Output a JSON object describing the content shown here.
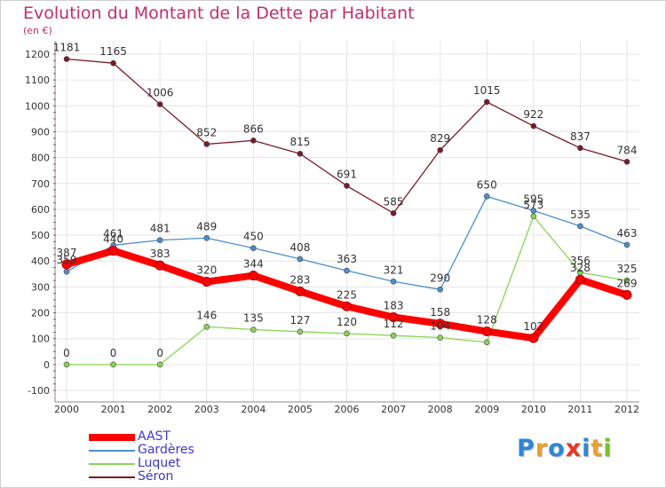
{
  "title": "Evolution du Montant de la Dette par Habitant",
  "unit": "(en €)",
  "logo": {
    "text": "Proxiti",
    "letter_colors": [
      "#2e86d6",
      "#e8a12a",
      "#2e86d6",
      "#e23a2a",
      "#2e86d6",
      "#e8a12a",
      "#7bbf2e"
    ]
  },
  "chart_data": {
    "type": "line",
    "x": [
      "2000",
      "2001",
      "2002",
      "2003",
      "2004",
      "2005",
      "2006",
      "2007",
      "2008",
      "2009",
      "2010",
      "2011",
      "2012"
    ],
    "ylim": [
      -100,
      1200
    ],
    "yticks": [
      -100,
      0,
      100,
      200,
      300,
      400,
      500,
      600,
      700,
      800,
      900,
      1000,
      1100,
      1200
    ],
    "grid": true,
    "legend_position": "bottom-left",
    "series": [
      {
        "name": "Séron",
        "color": "#7a1a24",
        "values": [
          1181,
          1165,
          1006,
          852,
          866,
          815,
          691,
          585,
          829,
          1015,
          922,
          837,
          784
        ]
      },
      {
        "name": "Gardères",
        "color": "#4a8fcf",
        "values": [
          359,
          461,
          481,
          489,
          450,
          408,
          363,
          321,
          290,
          650,
          595,
          535,
          463
        ]
      },
      {
        "name": "Luquet",
        "color": "#88d455",
        "values": [
          0,
          0,
          0,
          146,
          135,
          127,
          120,
          112,
          104,
          86,
          573,
          356,
          325
        ]
      },
      {
        "name": "AAST",
        "color": "#ff0000",
        "values": [
          387,
          440,
          383,
          320,
          344,
          283,
          225,
          183,
          158,
          128,
          102,
          328,
          269
        ]
      }
    ],
    "legend_order": [
      "AAST",
      "Gardères",
      "Luquet",
      "Séron"
    ],
    "data_labels": {
      "Séron": [
        "1181",
        "1165",
        "1006",
        "852",
        "866",
        "815",
        "691",
        "585",
        "829",
        "1015",
        "922",
        "837",
        "784"
      ],
      "Gardères": [
        "359",
        "461",
        "481",
        "489",
        "450",
        "408",
        "363",
        "321",
        "290",
        "650",
        "595",
        "535",
        "463"
      ],
      "Luquet": [
        "0",
        "0",
        "0",
        "146",
        "135",
        "127",
        "120",
        "112",
        "104",
        "",
        "573",
        "356",
        "325"
      ],
      "AAST": [
        "387",
        "440",
        "383",
        "320",
        "344",
        "283",
        "225",
        "183",
        "158",
        "128",
        "102",
        "328",
        "269"
      ]
    }
  }
}
